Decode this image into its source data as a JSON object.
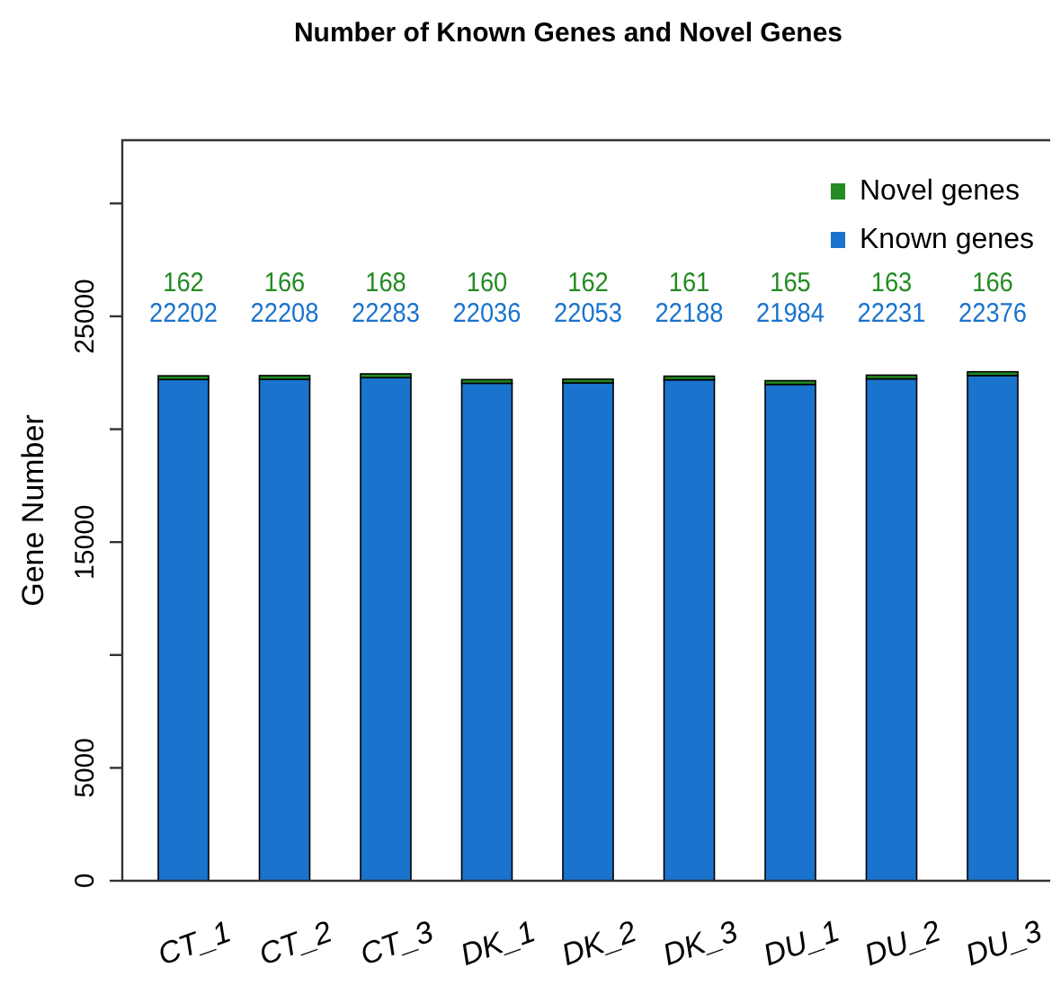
{
  "chart_data": {
    "type": "bar",
    "title": "Number of Known Genes and Novel Genes",
    "ylabel": "Gene Number",
    "categories": [
      "CT_1",
      "CT_2",
      "CT_3",
      "DK_1",
      "DK_2",
      "DK_3",
      "DU_1",
      "DU_2",
      "DU_3"
    ],
    "series": [
      {
        "name": "Known genes",
        "color": "#1a73cc",
        "values": [
          22202,
          22208,
          22283,
          22036,
          22053,
          22188,
          21984,
          22231,
          22376
        ]
      },
      {
        "name": "Novel genes",
        "color": "#228b22",
        "values": [
          162,
          166,
          168,
          160,
          162,
          161,
          165,
          163,
          166
        ]
      }
    ],
    "stacked": true,
    "data_labels": true,
    "legend": "top right",
    "ylim": [
      0,
      32800
    ],
    "yticks": [
      0,
      5000,
      {
        "value": 10000,
        "label": null
      },
      15000,
      {
        "value": 20000,
        "label": null
      },
      25000,
      {
        "value": 30000,
        "label": null
      }
    ]
  }
}
